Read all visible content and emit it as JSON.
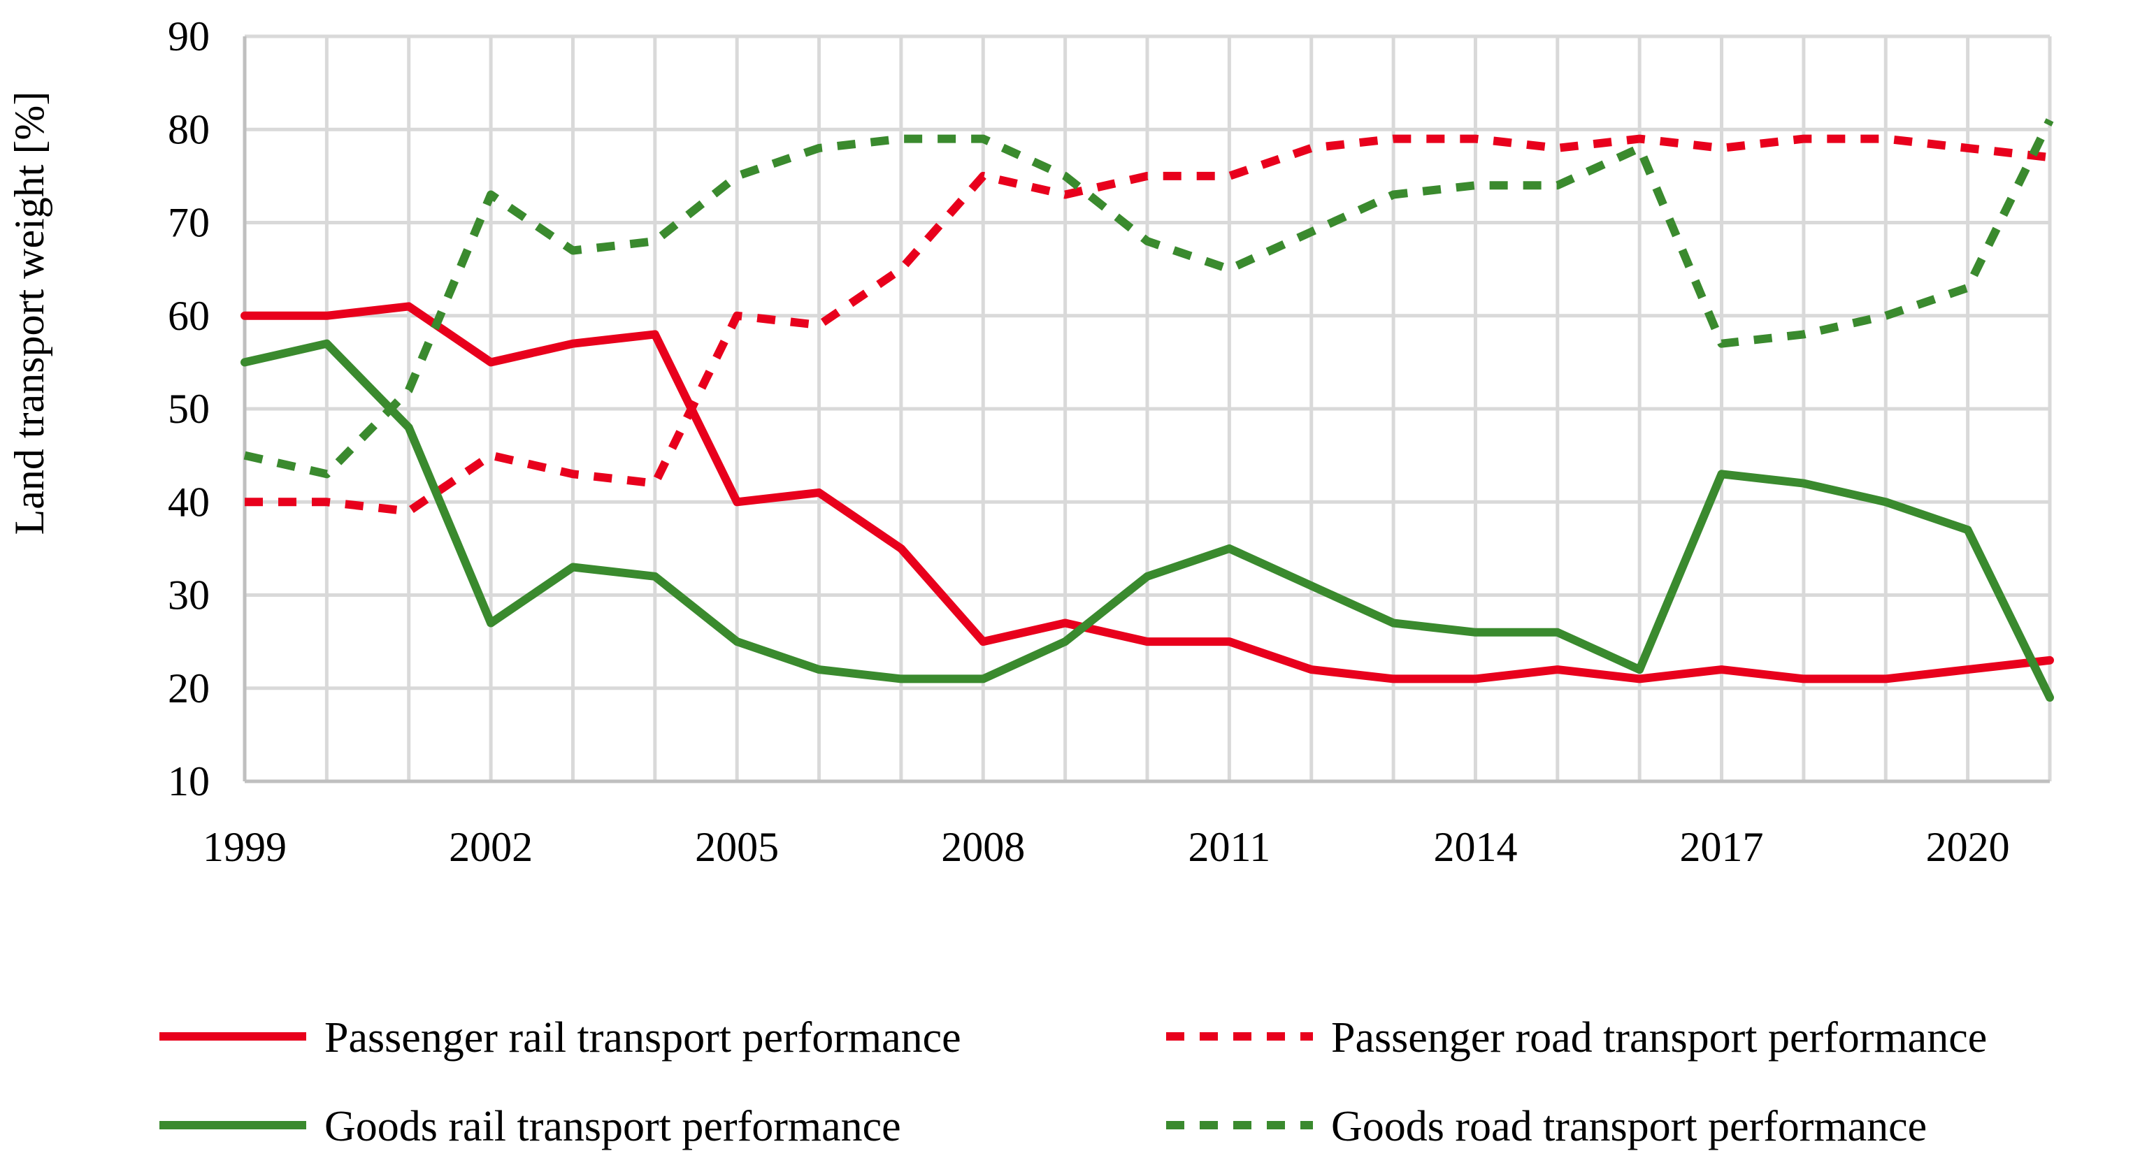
{
  "chart_data": {
    "type": "line",
    "title": "",
    "xlabel": "",
    "ylabel": "Land transport weight [%]",
    "ylim": [
      10,
      90
    ],
    "yticks": [
      10,
      20,
      30,
      40,
      50,
      60,
      70,
      80,
      90
    ],
    "x": [
      1999,
      2000,
      2001,
      2002,
      2003,
      2004,
      2005,
      2006,
      2007,
      2008,
      2009,
      2010,
      2011,
      2012,
      2013,
      2014,
      2015,
      2016,
      2017,
      2018,
      2019,
      2020,
      2021
    ],
    "xtick_labels": [
      "1999",
      "2002",
      "2005",
      "2008",
      "2011",
      "2014",
      "2017",
      "2020"
    ],
    "xtick_years": [
      1999,
      2002,
      2005,
      2008,
      2011,
      2014,
      2017,
      2020
    ],
    "grid": true,
    "legend_position": "bottom",
    "series": [
      {
        "name": "Passenger rail transport performance",
        "color": "#e8001c",
        "style": "solid",
        "values": [
          60,
          60,
          61,
          55,
          57,
          58,
          40,
          41,
          35,
          25,
          27,
          25,
          25,
          22,
          21,
          21,
          22,
          21,
          22,
          21,
          21,
          22,
          23
        ]
      },
      {
        "name": "Passenger road transport performance",
        "color": "#e8001c",
        "style": "dashed",
        "values": [
          40,
          40,
          39,
          45,
          43,
          42,
          60,
          59,
          65,
          75,
          73,
          75,
          75,
          78,
          79,
          79,
          78,
          79,
          78,
          79,
          79,
          78,
          77
        ]
      },
      {
        "name": "Goods rail transport performance",
        "color": "#3a8a2e",
        "style": "solid",
        "values": [
          55,
          57,
          48,
          27,
          33,
          32,
          25,
          22,
          21,
          21,
          25,
          32,
          35,
          31,
          27,
          26,
          26,
          22,
          43,
          42,
          40,
          37,
          19
        ]
      },
      {
        "name": "Goods road transport performance",
        "color": "#3a8a2e",
        "style": "dashed",
        "values": [
          45,
          43,
          52,
          73,
          67,
          68,
          75,
          78,
          79,
          79,
          75,
          68,
          65,
          69,
          73,
          74,
          74,
          78,
          57,
          58,
          60,
          63,
          81
        ]
      }
    ]
  }
}
